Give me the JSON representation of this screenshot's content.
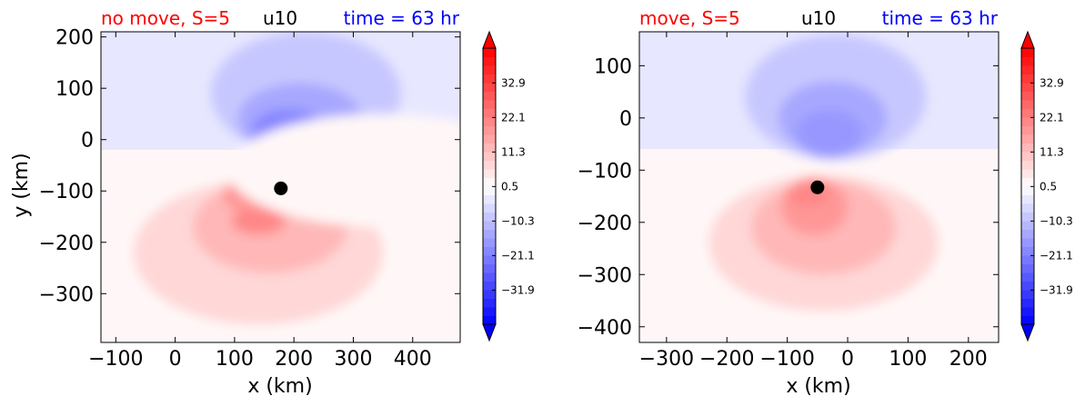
{
  "colors": {
    "title_left": "#ff0000",
    "title_center": "#000000",
    "title_right": "#0000ff",
    "marker": "#000000"
  },
  "chart_data": [
    {
      "type": "heatmap",
      "title_left": "no move, S=5",
      "title_center": "u10",
      "title_right": "time = 63 hr",
      "xlabel": "x (km)",
      "ylabel": "y (km)",
      "xlim": [
        -125,
        480
      ],
      "ylim": [
        -395,
        210
      ],
      "xticks": [
        -100,
        0,
        100,
        200,
        300,
        400
      ],
      "xtick_labels": [
        "−100",
        "0",
        "100",
        "200",
        "300",
        "400"
      ],
      "yticks": [
        200,
        100,
        0,
        -100,
        -200,
        -300
      ],
      "ytick_labels": [
        "200",
        "100",
        "0",
        "−100",
        "−200",
        "−300"
      ],
      "center_marker": {
        "x": 178,
        "y": -95
      },
      "blobs": [
        {
          "x": 220,
          "y": 90,
          "rx": 160,
          "ry": 120,
          "value": -8
        },
        {
          "x": 210,
          "y": 40,
          "rx": 105,
          "ry": 70,
          "value": -15
        },
        {
          "x": 190,
          "y": 20,
          "rx": 60,
          "ry": 40,
          "value": -19
        },
        {
          "x": 140,
          "y": -220,
          "rx": 210,
          "ry": 140,
          "value": 7
        },
        {
          "x": 160,
          "y": -170,
          "rx": 130,
          "ry": 90,
          "value": 13
        },
        {
          "x": 150,
          "y": -110,
          "rx": 70,
          "ry": 40,
          "value": 17
        },
        {
          "x": 140,
          "y": -160,
          "rx": 45,
          "ry": 25,
          "value": 22
        },
        {
          "x": 160,
          "y": -80,
          "rx": 45,
          "ry": 22,
          "value": 20
        },
        {
          "x": 350,
          "y": -60,
          "rx": 260,
          "ry": 110,
          "value": 3
        }
      ],
      "background_split_y": -20,
      "background_north_value": -4,
      "background_south_value": 3
    },
    {
      "type": "heatmap",
      "title_left": "move, S=5",
      "title_center": "u10",
      "title_right": "time = 63 hr",
      "xlabel": "x (km)",
      "ylabel": "",
      "xlim": [
        -345,
        250
      ],
      "ylim": [
        -430,
        165
      ],
      "xticks": [
        -300,
        -200,
        -100,
        0,
        100,
        200
      ],
      "xtick_labels": [
        "−300",
        "−200",
        "−100",
        "0",
        "100",
        "200"
      ],
      "yticks": [
        100,
        0,
        -100,
        -200,
        -300,
        -400
      ],
      "ytick_labels": [
        "100",
        "0",
        "−100",
        "−200",
        "−300",
        "−400"
      ],
      "center_marker": {
        "x": -50,
        "y": -133
      },
      "blobs": [
        {
          "x": -20,
          "y": 40,
          "rx": 150,
          "ry": 120,
          "value": -8
        },
        {
          "x": -25,
          "y": 0,
          "rx": 90,
          "ry": 70,
          "value": -13
        },
        {
          "x": -30,
          "y": -30,
          "rx": 55,
          "ry": 45,
          "value": -17
        },
        {
          "x": -40,
          "y": -240,
          "rx": 190,
          "ry": 130,
          "value": 7
        },
        {
          "x": -40,
          "y": -210,
          "rx": 120,
          "ry": 90,
          "value": 12
        },
        {
          "x": -55,
          "y": -170,
          "rx": 55,
          "ry": 55,
          "value": 18
        },
        {
          "x": -65,
          "y": -145,
          "rx": 35,
          "ry": 25,
          "value": 22
        }
      ],
      "background_split_y": -60,
      "background_north_value": -4,
      "background_south_value": 3
    }
  ],
  "colorbar": {
    "vmin": -42.6,
    "vmax": 43.8,
    "ticks": [
      32.9,
      22.1,
      11.3,
      0.5,
      -10.3,
      -21.1,
      -31.9
    ],
    "tick_labels": [
      "32.9",
      "22.1",
      "11.3",
      "0.5",
      "−10.3",
      "−21.1",
      "−31.9"
    ],
    "extend": "both",
    "cmap": "bwr",
    "levels": 32
  }
}
